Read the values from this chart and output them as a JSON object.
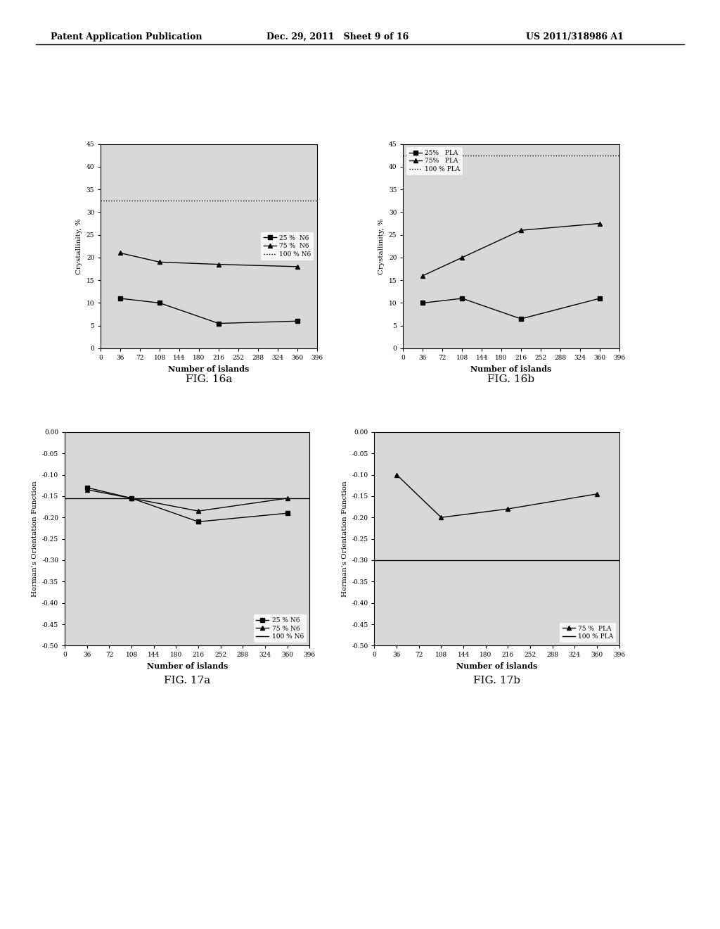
{
  "header_left": "Patent Application Publication",
  "header_mid": "Dec. 29, 2011   Sheet 9 of 16",
  "header_right": "US 2011/318986 A1",
  "x_ticks": [
    0,
    36,
    72,
    108,
    144,
    180,
    216,
    252,
    288,
    324,
    360,
    396
  ],
  "fig16a": {
    "title": "FIG. 16a",
    "xlabel": "Number of islands",
    "ylabel": "Crystallinity, %",
    "ylim": [
      0,
      45
    ],
    "yticks": [
      0,
      5,
      10,
      15,
      20,
      25,
      30,
      35,
      40,
      45
    ],
    "legend_loc": "center right",
    "series": [
      {
        "label": "25 %  N6",
        "marker": "s",
        "x": [
          36,
          108,
          216,
          360
        ],
        "y": [
          11,
          10,
          5.5,
          6
        ]
      },
      {
        "label": "75 %  N6",
        "marker": "^",
        "x": [
          36,
          108,
          216,
          360
        ],
        "y": [
          21,
          19,
          18.5,
          18
        ]
      },
      {
        "label": "100 % N6",
        "marker": "none",
        "linestyle": "dotted",
        "x": [
          0,
          396
        ],
        "y": [
          32.5,
          32.5
        ]
      }
    ]
  },
  "fig16b": {
    "title": "FIG. 16b",
    "xlabel": "Number of islands",
    "ylabel": "Crystallinity, %",
    "ylim": [
      0,
      45
    ],
    "yticks": [
      0,
      5,
      10,
      15,
      20,
      25,
      30,
      35,
      40,
      45
    ],
    "legend_loc": "upper left",
    "series": [
      {
        "label": "25%   PLA",
        "marker": "s",
        "x": [
          36,
          108,
          216,
          360
        ],
        "y": [
          10,
          11,
          6.5,
          11
        ]
      },
      {
        "label": "75%   PLA",
        "marker": "^",
        "x": [
          36,
          108,
          216,
          360
        ],
        "y": [
          16,
          20,
          26,
          27.5
        ]
      },
      {
        "label": "100 % PLA",
        "marker": "none",
        "linestyle": "dotted",
        "x": [
          0,
          396
        ],
        "y": [
          42.5,
          42.5
        ]
      }
    ]
  },
  "fig17a": {
    "title": "FIG. 17a",
    "xlabel": "Number of islands",
    "ylabel": "Herman's Orientation Function",
    "ylim": [
      -0.5,
      0.0
    ],
    "yticks": [
      0.0,
      -0.05,
      -0.1,
      -0.15,
      -0.2,
      -0.25,
      -0.3,
      -0.35,
      -0.4,
      -0.45,
      -0.5
    ],
    "legend_loc": "lower right",
    "series": [
      {
        "label": "25 % N6",
        "marker": "s",
        "x": [
          36,
          108,
          216,
          360
        ],
        "y": [
          -0.13,
          -0.155,
          -0.21,
          -0.19
        ]
      },
      {
        "label": "75 % N6",
        "marker": "^",
        "x": [
          36,
          108,
          216,
          360
        ],
        "y": [
          -0.135,
          -0.155,
          -0.185,
          -0.155
        ]
      },
      {
        "label": "100 % N6",
        "marker": "none",
        "linestyle": "solid",
        "x": [
          0,
          396
        ],
        "y": [
          -0.155,
          -0.155
        ]
      }
    ]
  },
  "fig17b": {
    "title": "FIG. 17b",
    "xlabel": "Number of islands",
    "ylabel": "Herman's Orientation Function",
    "ylim": [
      -0.5,
      0.0
    ],
    "yticks": [
      0.0,
      -0.05,
      -0.1,
      -0.15,
      -0.2,
      -0.25,
      -0.3,
      -0.35,
      -0.4,
      -0.45,
      -0.5
    ],
    "legend_loc": "lower right",
    "series": [
      {
        "label": "75 %  PLA",
        "marker": "^",
        "x": [
          36,
          108,
          216,
          360
        ],
        "y": [
          -0.1,
          -0.2,
          -0.18,
          -0.145
        ]
      },
      {
        "label": "100 % PLA",
        "marker": "none",
        "linestyle": "solid",
        "x": [
          0,
          396
        ],
        "y": [
          -0.3,
          -0.3
        ]
      }
    ]
  }
}
